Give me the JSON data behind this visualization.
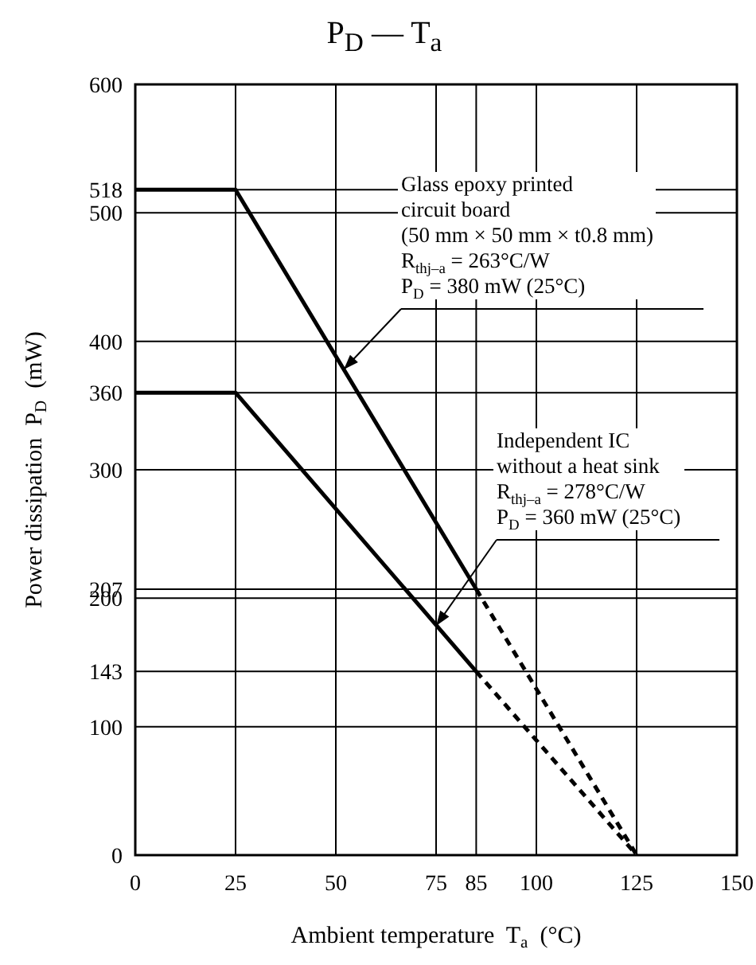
{
  "chart_data": {
    "type": "line",
    "title": "P$_{D}$ — T$_{a}$",
    "xlabel": "Ambient temperature  T$_{a}$  (°C)",
    "ylabel": "Power dissipation  P$_{D}$  (mW)",
    "series": [
      {
        "color": "#000000",
        "x": [
          0,
          25,
          85
        ],
        "values": [
          518,
          518,
          207
        ],
        "line_style": "solid"
      },
      {
        "color": "#000000",
        "x": [
          85,
          125
        ],
        "values": [
          207,
          0
        ],
        "line_style": "dashed"
      },
      {
        "color": "#000000",
        "x": [
          0,
          25,
          85
        ],
        "values": [
          360,
          360,
          143
        ],
        "line_style": "solid"
      },
      {
        "color": "#000000",
        "x": [
          85,
          125
        ],
        "values": [
          143,
          0
        ],
        "line_style": "dashed"
      }
    ],
    "xlim": [
      0,
      150
    ],
    "xticks": [
      0,
      25,
      50,
      75,
      85,
      100,
      125,
      150
    ],
    "ylim": [
      0,
      600
    ],
    "yticks": [
      0,
      100,
      143,
      200,
      207,
      300,
      360,
      400,
      500,
      518,
      600
    ],
    "grid": true,
    "marker": "none",
    "annotations": [
      "Glass epoxy printed\ncircuit board\n(50 mm × 50 mm × t0.8 mm)\nR$_{thj–a}$ = 263°C/W\nP$_{D}$ = 380 mW (25°C)",
      "Independent IC\nwithout a heat sink\nR$_{thj–a}$ = 278°C/W\nP$_{D}$ = 360 mW (25°C)"
    ]
  }
}
